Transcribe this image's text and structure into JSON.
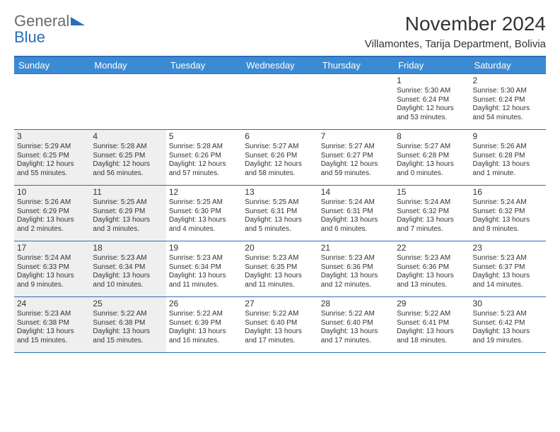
{
  "logo": {
    "line1": "General",
    "line2": "Blue"
  },
  "title": "November 2024",
  "location": "Villamontes, Tarija Department, Bolivia",
  "colors": {
    "header_bg": "#3b8bd4",
    "border": "#2a6db8",
    "shaded": "#efefef",
    "text": "#333333",
    "logo_gray": "#6a6a6a",
    "logo_blue": "#2a6db8"
  },
  "day_headers": [
    "Sunday",
    "Monday",
    "Tuesday",
    "Wednesday",
    "Thursday",
    "Friday",
    "Saturday"
  ],
  "weeks": [
    [
      {
        "num": "",
        "empty": true,
        "shaded": false
      },
      {
        "num": "",
        "empty": true,
        "shaded": false
      },
      {
        "num": "",
        "empty": true,
        "shaded": false
      },
      {
        "num": "",
        "empty": true,
        "shaded": false
      },
      {
        "num": "",
        "empty": true,
        "shaded": false
      },
      {
        "num": "1",
        "shaded": false,
        "sunrise": "Sunrise: 5:30 AM",
        "sunset": "Sunset: 6:24 PM",
        "daylight1": "Daylight: 12 hours",
        "daylight2": "and 53 minutes."
      },
      {
        "num": "2",
        "shaded": false,
        "sunrise": "Sunrise: 5:30 AM",
        "sunset": "Sunset: 6:24 PM",
        "daylight1": "Daylight: 12 hours",
        "daylight2": "and 54 minutes."
      }
    ],
    [
      {
        "num": "3",
        "shaded": true,
        "sunrise": "Sunrise: 5:29 AM",
        "sunset": "Sunset: 6:25 PM",
        "daylight1": "Daylight: 12 hours",
        "daylight2": "and 55 minutes."
      },
      {
        "num": "4",
        "shaded": true,
        "sunrise": "Sunrise: 5:28 AM",
        "sunset": "Sunset: 6:25 PM",
        "daylight1": "Daylight: 12 hours",
        "daylight2": "and 56 minutes."
      },
      {
        "num": "5",
        "shaded": false,
        "sunrise": "Sunrise: 5:28 AM",
        "sunset": "Sunset: 6:26 PM",
        "daylight1": "Daylight: 12 hours",
        "daylight2": "and 57 minutes."
      },
      {
        "num": "6",
        "shaded": false,
        "sunrise": "Sunrise: 5:27 AM",
        "sunset": "Sunset: 6:26 PM",
        "daylight1": "Daylight: 12 hours",
        "daylight2": "and 58 minutes."
      },
      {
        "num": "7",
        "shaded": false,
        "sunrise": "Sunrise: 5:27 AM",
        "sunset": "Sunset: 6:27 PM",
        "daylight1": "Daylight: 12 hours",
        "daylight2": "and 59 minutes."
      },
      {
        "num": "8",
        "shaded": false,
        "sunrise": "Sunrise: 5:27 AM",
        "sunset": "Sunset: 6:28 PM",
        "daylight1": "Daylight: 13 hours",
        "daylight2": "and 0 minutes."
      },
      {
        "num": "9",
        "shaded": false,
        "sunrise": "Sunrise: 5:26 AM",
        "sunset": "Sunset: 6:28 PM",
        "daylight1": "Daylight: 13 hours",
        "daylight2": "and 1 minute."
      }
    ],
    [
      {
        "num": "10",
        "shaded": true,
        "sunrise": "Sunrise: 5:26 AM",
        "sunset": "Sunset: 6:29 PM",
        "daylight1": "Daylight: 13 hours",
        "daylight2": "and 2 minutes."
      },
      {
        "num": "11",
        "shaded": true,
        "sunrise": "Sunrise: 5:25 AM",
        "sunset": "Sunset: 6:29 PM",
        "daylight1": "Daylight: 13 hours",
        "daylight2": "and 3 minutes."
      },
      {
        "num": "12",
        "shaded": false,
        "sunrise": "Sunrise: 5:25 AM",
        "sunset": "Sunset: 6:30 PM",
        "daylight1": "Daylight: 13 hours",
        "daylight2": "and 4 minutes."
      },
      {
        "num": "13",
        "shaded": false,
        "sunrise": "Sunrise: 5:25 AM",
        "sunset": "Sunset: 6:31 PM",
        "daylight1": "Daylight: 13 hours",
        "daylight2": "and 5 minutes."
      },
      {
        "num": "14",
        "shaded": false,
        "sunrise": "Sunrise: 5:24 AM",
        "sunset": "Sunset: 6:31 PM",
        "daylight1": "Daylight: 13 hours",
        "daylight2": "and 6 minutes."
      },
      {
        "num": "15",
        "shaded": false,
        "sunrise": "Sunrise: 5:24 AM",
        "sunset": "Sunset: 6:32 PM",
        "daylight1": "Daylight: 13 hours",
        "daylight2": "and 7 minutes."
      },
      {
        "num": "16",
        "shaded": false,
        "sunrise": "Sunrise: 5:24 AM",
        "sunset": "Sunset: 6:32 PM",
        "daylight1": "Daylight: 13 hours",
        "daylight2": "and 8 minutes."
      }
    ],
    [
      {
        "num": "17",
        "shaded": true,
        "sunrise": "Sunrise: 5:24 AM",
        "sunset": "Sunset: 6:33 PM",
        "daylight1": "Daylight: 13 hours",
        "daylight2": "and 9 minutes."
      },
      {
        "num": "18",
        "shaded": true,
        "sunrise": "Sunrise: 5:23 AM",
        "sunset": "Sunset: 6:34 PM",
        "daylight1": "Daylight: 13 hours",
        "daylight2": "and 10 minutes."
      },
      {
        "num": "19",
        "shaded": false,
        "sunrise": "Sunrise: 5:23 AM",
        "sunset": "Sunset: 6:34 PM",
        "daylight1": "Daylight: 13 hours",
        "daylight2": "and 11 minutes."
      },
      {
        "num": "20",
        "shaded": false,
        "sunrise": "Sunrise: 5:23 AM",
        "sunset": "Sunset: 6:35 PM",
        "daylight1": "Daylight: 13 hours",
        "daylight2": "and 11 minutes."
      },
      {
        "num": "21",
        "shaded": false,
        "sunrise": "Sunrise: 5:23 AM",
        "sunset": "Sunset: 6:36 PM",
        "daylight1": "Daylight: 13 hours",
        "daylight2": "and 12 minutes."
      },
      {
        "num": "22",
        "shaded": false,
        "sunrise": "Sunrise: 5:23 AM",
        "sunset": "Sunset: 6:36 PM",
        "daylight1": "Daylight: 13 hours",
        "daylight2": "and 13 minutes."
      },
      {
        "num": "23",
        "shaded": false,
        "sunrise": "Sunrise: 5:23 AM",
        "sunset": "Sunset: 6:37 PM",
        "daylight1": "Daylight: 13 hours",
        "daylight2": "and 14 minutes."
      }
    ],
    [
      {
        "num": "24",
        "shaded": true,
        "sunrise": "Sunrise: 5:23 AM",
        "sunset": "Sunset: 6:38 PM",
        "daylight1": "Daylight: 13 hours",
        "daylight2": "and 15 minutes."
      },
      {
        "num": "25",
        "shaded": true,
        "sunrise": "Sunrise: 5:22 AM",
        "sunset": "Sunset: 6:38 PM",
        "daylight1": "Daylight: 13 hours",
        "daylight2": "and 15 minutes."
      },
      {
        "num": "26",
        "shaded": false,
        "sunrise": "Sunrise: 5:22 AM",
        "sunset": "Sunset: 6:39 PM",
        "daylight1": "Daylight: 13 hours",
        "daylight2": "and 16 minutes."
      },
      {
        "num": "27",
        "shaded": false,
        "sunrise": "Sunrise: 5:22 AM",
        "sunset": "Sunset: 6:40 PM",
        "daylight1": "Daylight: 13 hours",
        "daylight2": "and 17 minutes."
      },
      {
        "num": "28",
        "shaded": false,
        "sunrise": "Sunrise: 5:22 AM",
        "sunset": "Sunset: 6:40 PM",
        "daylight1": "Daylight: 13 hours",
        "daylight2": "and 17 minutes."
      },
      {
        "num": "29",
        "shaded": false,
        "sunrise": "Sunrise: 5:22 AM",
        "sunset": "Sunset: 6:41 PM",
        "daylight1": "Daylight: 13 hours",
        "daylight2": "and 18 minutes."
      },
      {
        "num": "30",
        "shaded": false,
        "sunrise": "Sunrise: 5:23 AM",
        "sunset": "Sunset: 6:42 PM",
        "daylight1": "Daylight: 13 hours",
        "daylight2": "and 19 minutes."
      }
    ]
  ]
}
